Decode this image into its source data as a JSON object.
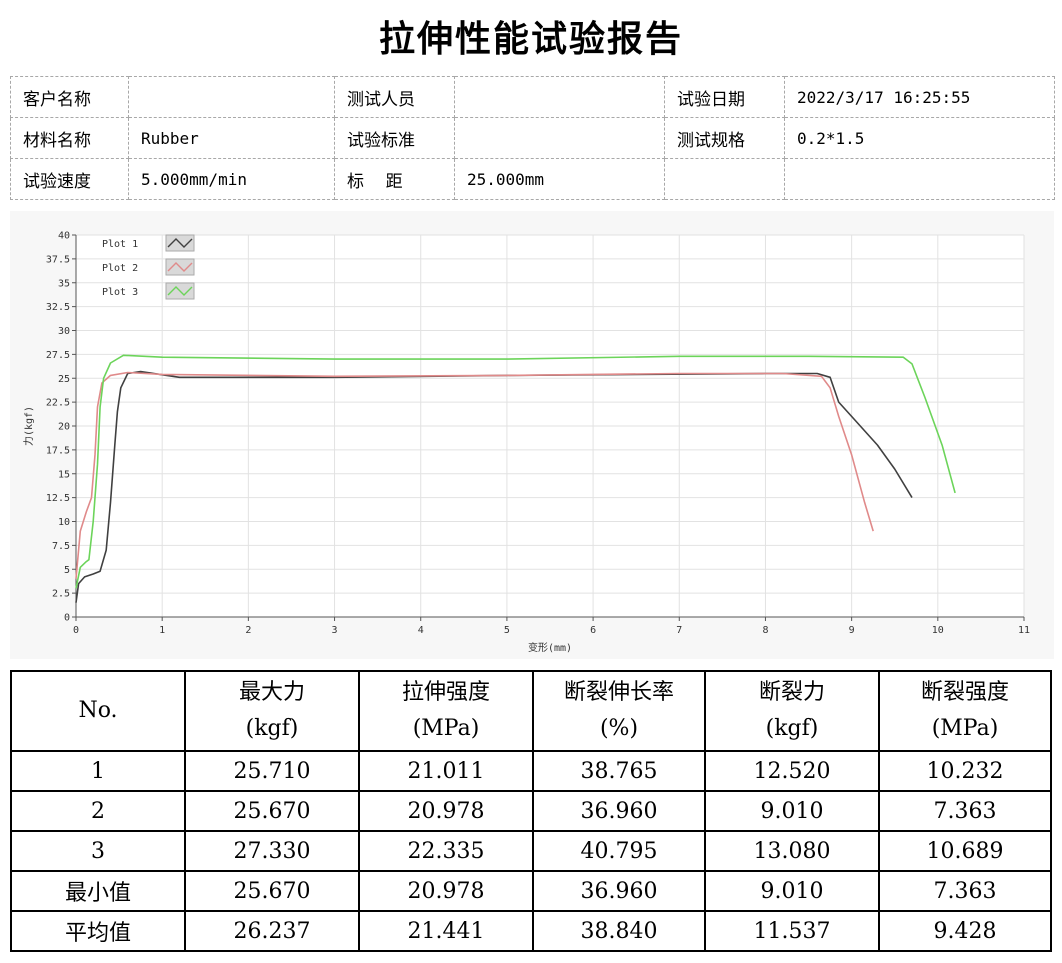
{
  "title": "拉伸性能试验报告",
  "info": {
    "customer_label": "客户名称",
    "customer_value": "",
    "tester_label": "测试人员",
    "tester_value": "",
    "date_label": "试验日期",
    "date_value": "2022/3/17 16:25:55",
    "material_label": "材料名称",
    "material_value": "Rubber",
    "standard_label": "试验标准",
    "standard_value": "",
    "spec_label": "测试规格",
    "spec_value": "0.2*1.5",
    "speed_label": "试验速度",
    "speed_value": "5.000mm/min",
    "gauge_label": "标    距",
    "gauge_value": "25.000mm"
  },
  "chart_data": {
    "type": "line",
    "xlabel": "变形(mm)",
    "ylabel": "力(kgf)",
    "xlim": [
      0,
      11
    ],
    "ylim": [
      0,
      40
    ],
    "x_ticks": [
      "0",
      "1",
      "2",
      "3",
      "4",
      "5",
      "6",
      "7",
      "8",
      "9",
      "10",
      "11"
    ],
    "y_ticks": [
      "0",
      "2.5",
      "5",
      "7.5",
      "10",
      "12.5",
      "15",
      "17.5",
      "20",
      "22.5",
      "25",
      "27.5",
      "30",
      "32.5",
      "35",
      "37.5",
      "40"
    ],
    "grid": true,
    "legend_position": "top-left",
    "series": [
      {
        "name": "Plot 1",
        "color": "#404040",
        "points": [
          [
            0,
            1.5
          ],
          [
            0.03,
            3.5
          ],
          [
            0.1,
            4.2
          ],
          [
            0.2,
            4.5
          ],
          [
            0.28,
            4.8
          ],
          [
            0.35,
            7
          ],
          [
            0.4,
            12
          ],
          [
            0.45,
            18
          ],
          [
            0.48,
            21.5
          ],
          [
            0.52,
            24
          ],
          [
            0.6,
            25.5
          ],
          [
            0.75,
            25.7
          ],
          [
            1.2,
            25.1
          ],
          [
            3,
            25.1
          ],
          [
            5,
            25.3
          ],
          [
            6.5,
            25.4
          ],
          [
            8,
            25.5
          ],
          [
            8.6,
            25.5
          ],
          [
            8.75,
            25.1
          ],
          [
            8.85,
            22.5
          ],
          [
            9.0,
            21
          ],
          [
            9.3,
            18
          ],
          [
            9.5,
            15.5
          ],
          [
            9.7,
            12.5
          ]
        ]
      },
      {
        "name": "Plot 2",
        "color": "#e08a8a",
        "points": [
          [
            0,
            4
          ],
          [
            0.05,
            9
          ],
          [
            0.12,
            11
          ],
          [
            0.18,
            12.5
          ],
          [
            0.22,
            17
          ],
          [
            0.25,
            22
          ],
          [
            0.3,
            24.5
          ],
          [
            0.4,
            25.3
          ],
          [
            0.6,
            25.6
          ],
          [
            1.0,
            25.4
          ],
          [
            3,
            25.2
          ],
          [
            5,
            25.3
          ],
          [
            7,
            25.5
          ],
          [
            8.2,
            25.5
          ],
          [
            8.65,
            25.2
          ],
          [
            8.75,
            24
          ],
          [
            8.85,
            21
          ],
          [
            9.0,
            17
          ],
          [
            9.15,
            12
          ],
          [
            9.25,
            9
          ]
        ]
      },
      {
        "name": "Plot 3",
        "color": "#6cd45a",
        "points": [
          [
            0,
            3
          ],
          [
            0.05,
            5.2
          ],
          [
            0.12,
            5.8
          ],
          [
            0.15,
            6
          ],
          [
            0.2,
            10
          ],
          [
            0.25,
            16
          ],
          [
            0.28,
            22
          ],
          [
            0.32,
            25
          ],
          [
            0.4,
            26.6
          ],
          [
            0.55,
            27.4
          ],
          [
            1.0,
            27.2
          ],
          [
            3,
            27.0
          ],
          [
            5,
            27.0
          ],
          [
            7,
            27.3
          ],
          [
            8.5,
            27.3
          ],
          [
            9.6,
            27.2
          ],
          [
            9.7,
            26.5
          ],
          [
            9.85,
            23
          ],
          [
            10.05,
            18
          ],
          [
            10.2,
            13
          ]
        ]
      }
    ]
  },
  "results": {
    "headers": [
      [
        "No.",
        ""
      ],
      [
        "最大力",
        "(kgf)"
      ],
      [
        "拉伸强度",
        "(MPa)"
      ],
      [
        "断裂伸长率",
        "(%)"
      ],
      [
        "断裂力",
        "(kgf)"
      ],
      [
        "断裂强度",
        "(MPa)"
      ]
    ],
    "rows": [
      [
        "1",
        "25.710",
        "21.011",
        "38.765",
        "12.520",
        "10.232"
      ],
      [
        "2",
        "25.670",
        "20.978",
        "36.960",
        "9.010",
        "7.363"
      ],
      [
        "3",
        "27.330",
        "22.335",
        "40.795",
        "13.080",
        "10.689"
      ],
      [
        "最小值",
        "25.670",
        "20.978",
        "36.960",
        "9.010",
        "7.363"
      ],
      [
        "平均值",
        "26.237",
        "21.441",
        "38.840",
        "11.537",
        "9.428"
      ]
    ]
  }
}
